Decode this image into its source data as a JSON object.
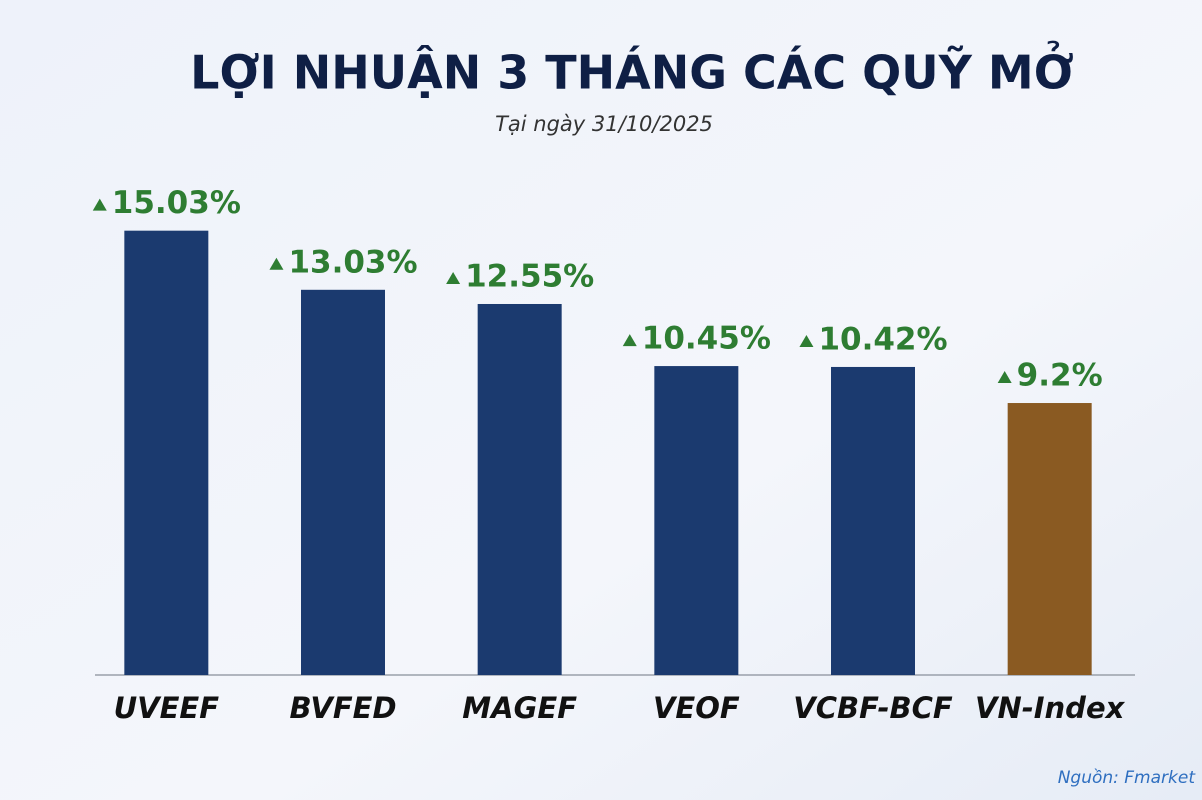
{
  "chart_data": {
    "type": "bar",
    "title": "LỢI NHUẬN 3 THÁNG CÁC QUỸ MỞ",
    "subtitle": "Tại ngày 31/10/2025",
    "categories": [
      "UVEEF",
      "BVFED",
      "MAGEF",
      "VEOF",
      "VCBF-BCF",
      "VN-Index"
    ],
    "values": [
      15.03,
      13.03,
      12.55,
      10.45,
      10.42,
      9.2
    ],
    "value_labels": [
      "15.03%",
      "13.03%",
      "12.55%",
      "10.45%",
      "10.42%",
      "9.2%"
    ],
    "colors": [
      "#1b3a6f",
      "#1b3a6f",
      "#1b3a6f",
      "#1b3a6f",
      "#1b3a6f",
      "#8a5a22"
    ],
    "ylim": [
      0,
      16
    ],
    "source": "Nguồn: Fmarket"
  }
}
